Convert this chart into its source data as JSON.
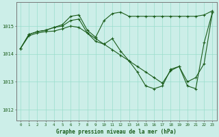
{
  "background_color": "#cceee8",
  "grid_color": "#99ddcc",
  "line_color": "#1a5c1a",
  "xlabel": "Graphe pression niveau de la mer (hPa)",
  "xlim": [
    -0.5,
    23.5
  ],
  "ylim": [
    1011.6,
    1015.85
  ],
  "yticks": [
    1012,
    1013,
    1014,
    1015
  ],
  "xticks": [
    0,
    1,
    2,
    3,
    4,
    5,
    6,
    7,
    8,
    9,
    10,
    11,
    12,
    13,
    14,
    15,
    16,
    17,
    18,
    19,
    20,
    21,
    22,
    23
  ],
  "series1_x": [
    0,
    1,
    2,
    3,
    4,
    5,
    6,
    7,
    8,
    9,
    10,
    11,
    12,
    13,
    14,
    15,
    16,
    17,
    18,
    19,
    20,
    21,
    22,
    23
  ],
  "series1_y": [
    1014.2,
    1014.7,
    1014.8,
    1014.85,
    1014.95,
    1015.05,
    1015.35,
    1015.4,
    1014.85,
    1014.6,
    1015.2,
    1015.45,
    1015.5,
    1015.35,
    1015.35,
    1015.35,
    1015.35,
    1015.35,
    1015.35,
    1015.35,
    1015.35,
    1015.35,
    1015.4,
    1015.55
  ],
  "series2_x": [
    0,
    1,
    2,
    3,
    4,
    5,
    6,
    7,
    8,
    9,
    10,
    11,
    12,
    13,
    14,
    15,
    16,
    17,
    18,
    19,
    20,
    21,
    22,
    23
  ],
  "series2_y": [
    1014.2,
    1014.7,
    1014.8,
    1014.85,
    1014.95,
    1015.0,
    1015.2,
    1015.25,
    1014.75,
    1014.45,
    1014.35,
    1014.55,
    1014.1,
    1013.75,
    1013.35,
    1012.85,
    1012.75,
    1012.85,
    1013.45,
    1013.55,
    1012.85,
    1012.75,
    1014.4,
    1015.5
  ],
  "series3_x": [
    0,
    1,
    2,
    3,
    4,
    5,
    6,
    7,
    8,
    9,
    10,
    11,
    12,
    13,
    14,
    15,
    16,
    17,
    18,
    19,
    20,
    21,
    22,
    23
  ],
  "series3_y": [
    1014.2,
    1014.65,
    1014.75,
    1014.8,
    1014.82,
    1014.9,
    1015.0,
    1014.95,
    1014.75,
    1014.55,
    1014.35,
    1014.15,
    1013.95,
    1013.75,
    1013.55,
    1013.35,
    1013.15,
    1012.95,
    1013.4,
    1013.55,
    1013.0,
    1013.15,
    1013.65,
    1015.5
  ]
}
